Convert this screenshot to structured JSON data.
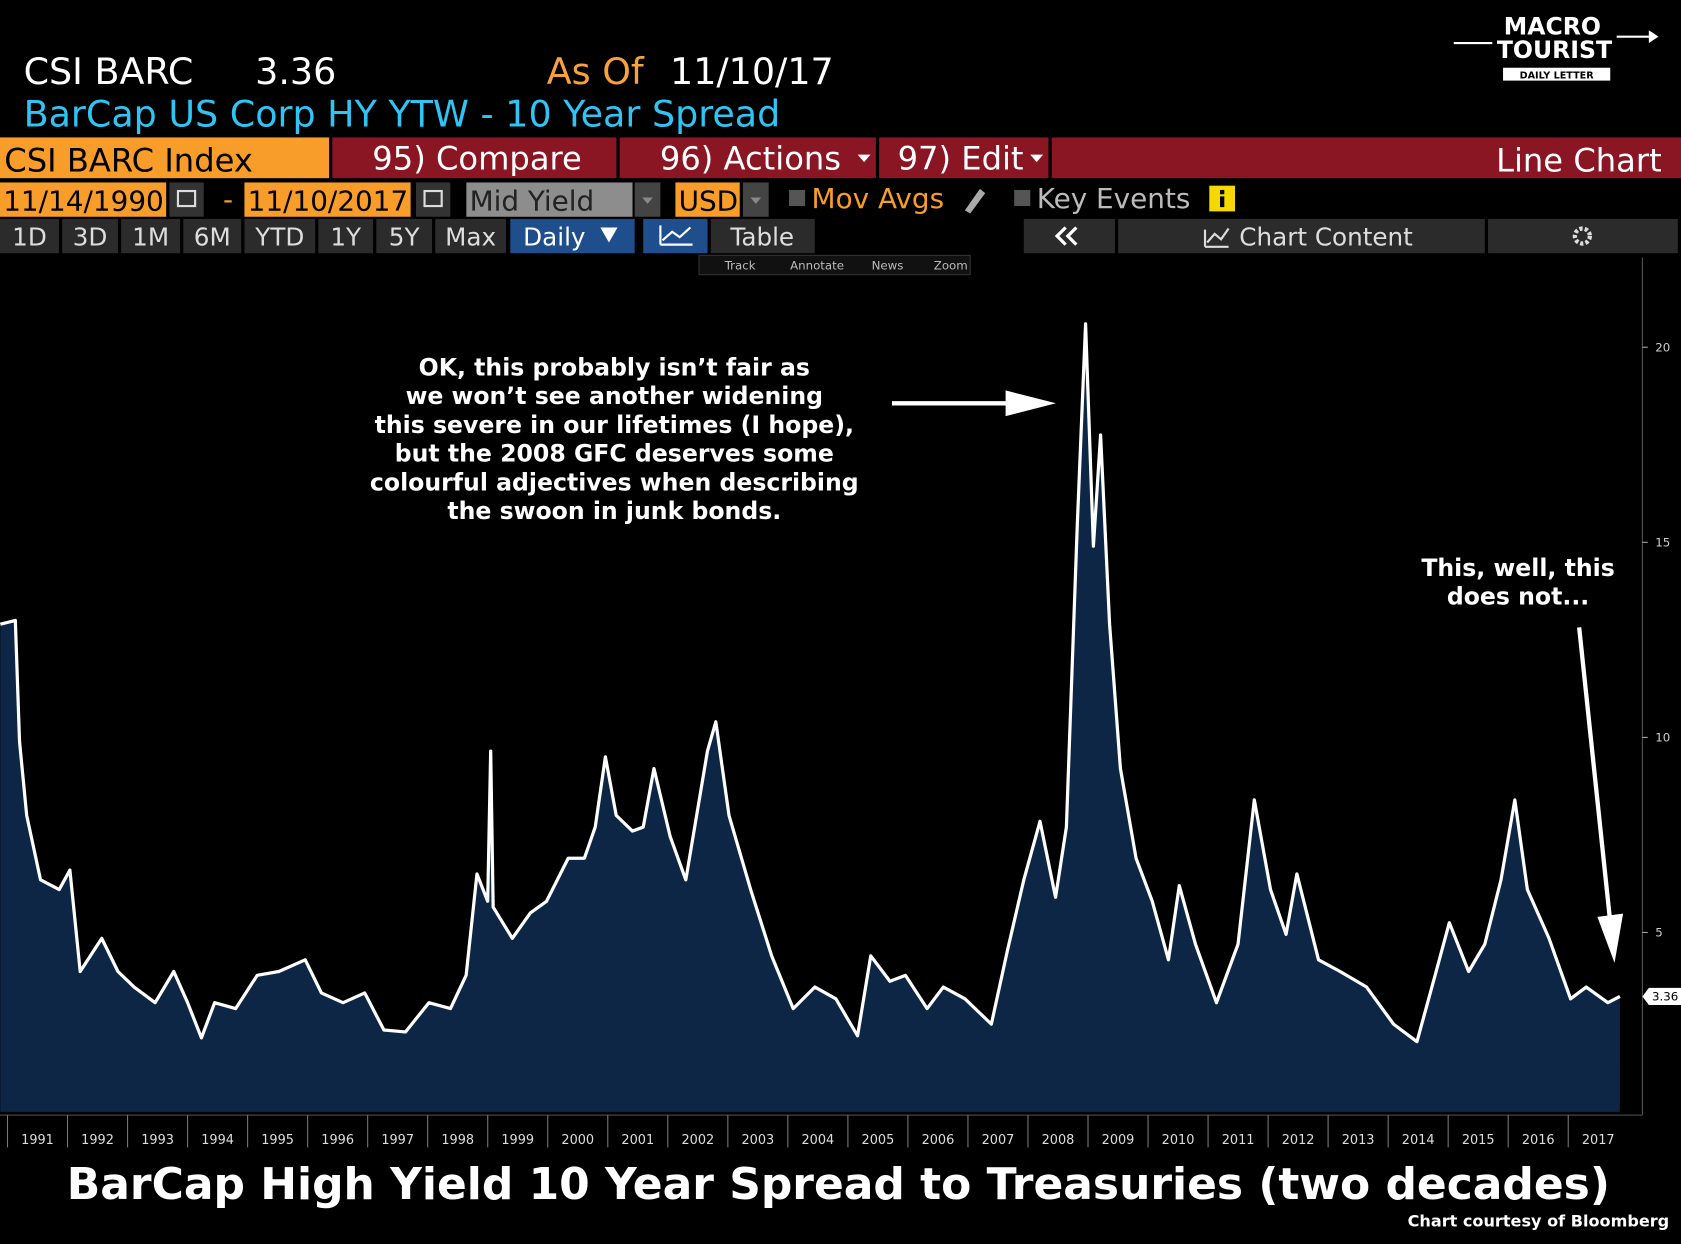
{
  "header": {
    "ticker": "CSI BARC",
    "last": "3.36",
    "as_of_label": "As Of",
    "as_of_date": "11/10/17",
    "subtitle": "BarCap US Corp HY YTW - 10 Year Spread"
  },
  "logo": {
    "line1": "MACRO",
    "line2": "TOURIST",
    "line3": "DAILY LETTER"
  },
  "toolbar": {
    "security": "CSI BARC Index",
    "compare": "95) Compare",
    "actions": "96) Actions",
    "edit": "97) Edit",
    "view": "Line Chart",
    "start_date": "11/14/1990",
    "date_sep": "-",
    "end_date": "11/10/2017",
    "field": "Mid Yield",
    "currency": "USD",
    "mov_avgs": "Mov Avgs",
    "key_events": "Key Events",
    "periods": [
      "1D",
      "3D",
      "1M",
      "6M",
      "YTD",
      "1Y",
      "5Y",
      "Max"
    ],
    "frequency": "Daily",
    "table": "Table",
    "chart_content": "Chart Content",
    "tools": [
      "Track",
      "Annotate",
      "News",
      "Zoom"
    ]
  },
  "chart_data": {
    "type": "area",
    "title": "BarCap High Yield 10 Year Spread to Treasuries (two decades)",
    "credit": "Chart courtesy of Bloomberg",
    "annotations": [
      {
        "lines": [
          "OK, this probably isn’t fair as",
          "we won’t see another widening",
          "this severe in our lifetimes (I hope),",
          "but the 2008 GFC deserves some",
          "colourful adjectives when describing",
          "the swoon in junk bonds."
        ]
      },
      {
        "lines": [
          "This, well, this",
          "does not..."
        ]
      }
    ],
    "x": [
      1990.88,
      1991.13,
      1991.2,
      1991.32,
      1991.55,
      1991.86,
      1992.04,
      1992.21,
      1992.57,
      1992.84,
      1993.11,
      1993.46,
      1993.77,
      1994.0,
      1994.23,
      1994.45,
      1994.8,
      1995.16,
      1995.52,
      1995.96,
      1996.23,
      1996.59,
      1996.95,
      1997.27,
      1997.63,
      1998.02,
      1998.38,
      1998.64,
      1998.82,
      1999.0,
      1999.05,
      1999.09,
      1999.41,
      1999.71,
      1999.98,
      2000.34,
      2000.61,
      2000.79,
      2000.96,
      2001.14,
      2001.41,
      2001.59,
      2001.77,
      2002.04,
      2002.3,
      2002.66,
      2002.8,
      2003.02,
      2003.38,
      2003.73,
      2004.09,
      2004.45,
      2004.8,
      2005.16,
      2005.38,
      2005.7,
      2005.96,
      2006.32,
      2006.59,
      2006.95,
      2007.39,
      2007.66,
      2007.93,
      2008.2,
      2008.46,
      2008.64,
      2008.82,
      2008.96,
      2009.09,
      2009.21,
      2009.36,
      2009.54,
      2009.8,
      2010.07,
      2010.34,
      2010.52,
      2010.79,
      2011.14,
      2011.5,
      2011.77,
      2012.04,
      2012.3,
      2012.48,
      2012.84,
      2013.2,
      2013.64,
      2014.09,
      2014.48,
      2014.8,
      2015.02,
      2015.34,
      2015.61,
      2015.88,
      2016.11,
      2016.32,
      2016.68,
      2017.04,
      2017.3,
      2017.66,
      2017.86
    ],
    "values": [
      12.9,
      13.0,
      9.9,
      8.0,
      6.35,
      6.1,
      6.6,
      4.0,
      4.85,
      4.0,
      3.6,
      3.2,
      4.0,
      3.2,
      2.3,
      3.2,
      3.05,
      3.9,
      4.0,
      4.3,
      3.45,
      3.2,
      3.45,
      2.5,
      2.45,
      3.2,
      3.05,
      3.9,
      6.5,
      5.8,
      9.65,
      5.65,
      4.85,
      5.5,
      5.8,
      6.9,
      6.9,
      7.7,
      9.5,
      8.0,
      7.6,
      7.7,
      9.2,
      7.45,
      6.35,
      9.65,
      10.4,
      8.0,
      6.1,
      4.4,
      3.05,
      3.6,
      3.3,
      2.35,
      4.4,
      3.75,
      3.9,
      3.05,
      3.6,
      3.3,
      2.65,
      4.55,
      6.35,
      7.85,
      5.9,
      7.7,
      15.4,
      20.6,
      14.9,
      17.75,
      12.9,
      9.2,
      6.9,
      5.8,
      4.3,
      6.2,
      4.7,
      3.2,
      4.7,
      8.4,
      6.1,
      4.95,
      6.5,
      4.3,
      4.0,
      3.6,
      2.65,
      2.2,
      4.0,
      5.25,
      4.0,
      4.7,
      6.35,
      8.4,
      6.1,
      4.85,
      3.3,
      3.6,
      3.2,
      3.36
    ],
    "last_value": 3.36,
    "color": "#ffffff",
    "fill_color": "#0e2646",
    "xlim": [
      1990.875,
      2018.2
    ],
    "xticks": [
      1991,
      1992,
      1993,
      1994,
      1995,
      1996,
      1997,
      1998,
      1999,
      2000,
      2001,
      2002,
      2003,
      2004,
      2005,
      2006,
      2007,
      2008,
      2009,
      2010,
      2011,
      2012,
      2013,
      2014,
      2015,
      2016,
      2017
    ],
    "ylim": [
      0.4,
      22.3
    ],
    "yticks": [
      5,
      10,
      15,
      20
    ],
    "y_axis_side": "right"
  }
}
